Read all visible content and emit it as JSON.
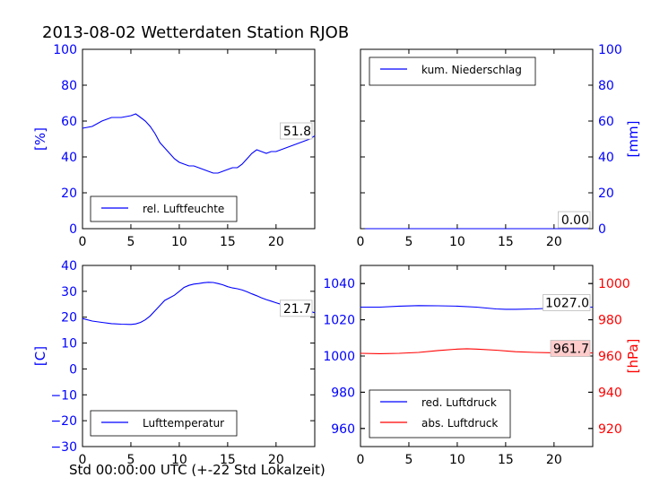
{
  "title": "2013-08-02 Wetterdaten Station RJOB",
  "xlabel": "Std 00:00:00 UTC (+-22 Std Lokalzeit)",
  "colors": {
    "blue": "#0000ff",
    "red": "#ff0000",
    "label_bg": "#ffffff",
    "label_bg_red": "#ffcccc"
  },
  "chart_data": [
    {
      "type": "line",
      "panel": "humidity",
      "ylabel": "[%]",
      "ylabel_side": "left",
      "xlim": [
        0,
        24
      ],
      "ylim": [
        0,
        100
      ],
      "xticks": [
        "0",
        "5",
        "10",
        "15",
        "20"
      ],
      "yticks": [
        "0",
        "20",
        "40",
        "60",
        "80",
        "100"
      ],
      "legend_placement": "lower-left",
      "last_value_label": "51.8",
      "series": [
        {
          "name": "rel. Luftfeuchte",
          "color": "#0000ff",
          "x": [
            0,
            1,
            2,
            3,
            4,
            5,
            5.5,
            6,
            6.5,
            7,
            7.5,
            8,
            8.5,
            9,
            9.5,
            10,
            10.5,
            11,
            11.5,
            12,
            12.5,
            13,
            13.5,
            14,
            14.5,
            15,
            15.5,
            16,
            16.5,
            17,
            17.5,
            18,
            18.5,
            19,
            19.5,
            20,
            20.5,
            21,
            21.5,
            22,
            22.5,
            23,
            23.5,
            24
          ],
          "y": [
            56,
            57,
            60,
            62,
            62,
            63,
            64,
            62,
            60,
            57,
            53,
            48,
            45,
            42,
            39,
            37,
            36,
            35,
            35,
            34,
            33,
            32,
            31,
            31,
            32,
            33,
            34,
            34,
            36,
            39,
            42,
            44,
            43,
            42,
            43,
            43,
            44,
            45,
            46,
            47,
            48,
            49,
            50,
            51.8
          ]
        }
      ]
    },
    {
      "type": "line",
      "panel": "precipitation",
      "ylabel": "[mm]",
      "ylabel_side": "right",
      "xlim": [
        0,
        24
      ],
      "ylim": [
        0,
        100
      ],
      "xticks": [
        "0",
        "5",
        "10",
        "15",
        "20"
      ],
      "yticks": [
        "0",
        "20",
        "40",
        "60",
        "80",
        "100"
      ],
      "legend_placement": "upper-left",
      "last_value_label": "0.00",
      "series": [
        {
          "name": "kum. Niederschlag",
          "color": "#0000ff",
          "x": [
            0,
            24
          ],
          "y": [
            0,
            0
          ]
        }
      ]
    },
    {
      "type": "line",
      "panel": "temperature",
      "ylabel": "[C]",
      "ylabel_side": "left",
      "xlim": [
        0,
        24
      ],
      "ylim": [
        -30,
        40
      ],
      "xticks": [
        "0",
        "5",
        "10",
        "15",
        "20"
      ],
      "yticks": [
        "−30",
        "−20",
        "−10",
        "0",
        "10",
        "20",
        "30",
        "40"
      ],
      "legend_placement": "lower-left",
      "last_value_label": "21.7",
      "series": [
        {
          "name": "Lufttemperatur",
          "color": "#0000ff",
          "x": [
            0,
            1,
            2,
            3,
            4,
            5,
            5.5,
            6,
            6.5,
            7,
            7.5,
            8,
            8.5,
            9,
            9.5,
            10,
            10.5,
            11,
            11.5,
            12,
            12.5,
            13,
            13.5,
            14,
            14.5,
            15,
            15.5,
            16,
            16.5,
            17,
            17.5,
            18,
            18.5,
            19,
            19.5,
            20,
            20.5,
            21,
            21.5,
            22,
            22.5,
            23,
            23.5,
            24
          ],
          "y": [
            19.5,
            18.5,
            18,
            17.5,
            17.3,
            17.2,
            17.4,
            18,
            19,
            20.5,
            22.5,
            24.5,
            26.5,
            27.5,
            28.5,
            30,
            31.5,
            32.3,
            32.8,
            33,
            33.3,
            33.5,
            33.4,
            33,
            32.5,
            31.8,
            31.3,
            31,
            30.5,
            29.8,
            29,
            28.3,
            27.5,
            26.8,
            26.2,
            25.6,
            25,
            24.5,
            24.1,
            23.7,
            23.3,
            22.9,
            22.3,
            21.7
          ]
        }
      ]
    },
    {
      "type": "line",
      "panel": "pressure",
      "ylabel": "[hPa]",
      "ylabel_side": "right",
      "xlim": [
        0,
        24
      ],
      "ylim_left": [
        950,
        1050
      ],
      "ylim_right": [
        910,
        1010
      ],
      "xticks": [
        "0",
        "5",
        "10",
        "15",
        "20"
      ],
      "yticks_left": [
        "960",
        "980",
        "1000",
        "1020",
        "1040"
      ],
      "yticks_right": [
        "920",
        "940",
        "960",
        "980",
        "1000"
      ],
      "legend_placement": "lower-left",
      "series": [
        {
          "name": "red. Luftdruck",
          "color": "#0000ff",
          "axis": "left",
          "last_value_label": "1027.0",
          "x": [
            0,
            2,
            4,
            6,
            8,
            10,
            12,
            14,
            15,
            16,
            18,
            20,
            22,
            24
          ],
          "y": [
            1027,
            1027,
            1027.5,
            1027.8,
            1027.7,
            1027.5,
            1027,
            1026,
            1025.8,
            1025.8,
            1026,
            1026.5,
            1027,
            1027
          ]
        },
        {
          "name": "abs. Luftdruck",
          "color": "#ff0000",
          "axis": "right",
          "last_value_label": "961.7",
          "x": [
            0,
            2,
            4,
            6,
            8,
            10,
            11,
            12,
            14,
            16,
            18,
            20,
            22,
            24
          ],
          "y": [
            961.5,
            961.3,
            961.5,
            962,
            963,
            963.8,
            964,
            963.8,
            963.2,
            962.4,
            962,
            961.8,
            961.7,
            961.7
          ]
        }
      ]
    }
  ]
}
